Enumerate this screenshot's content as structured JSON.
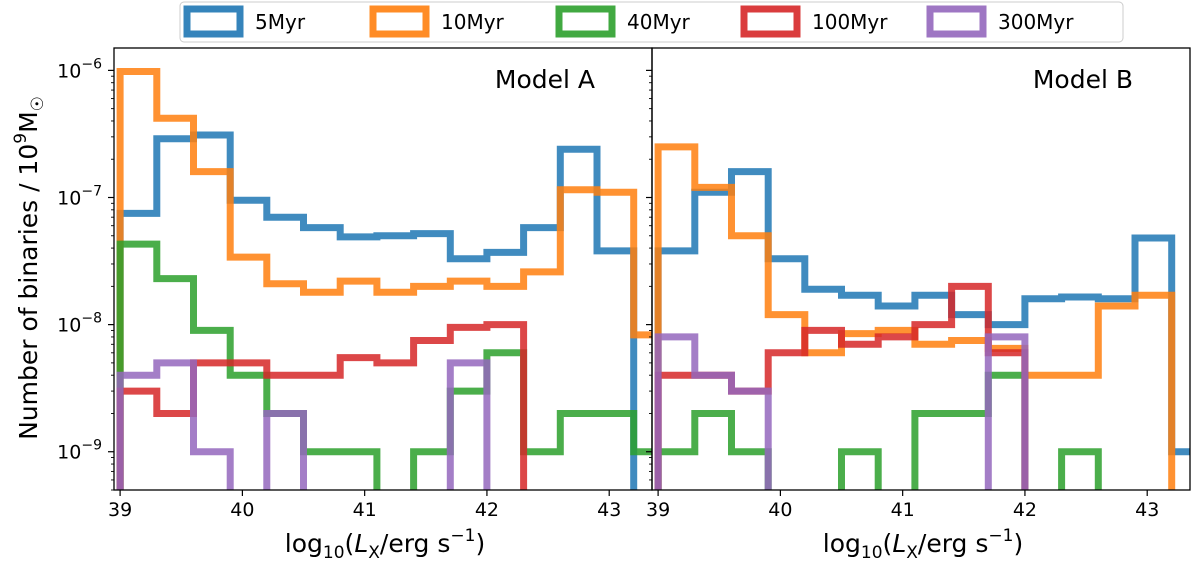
{
  "chart_data": {
    "type": "histogram-step",
    "ylabel": "Number of binaries / 10⁹M☉",
    "ylabel_parts": {
      "prefix": "Number of binaries / 10",
      "exp": "9",
      "unit": "M",
      "sub": "☉"
    },
    "yscale": "log",
    "ylim": [
      5e-10,
      1.5e-06
    ],
    "y_ticks": [
      {
        "value": 1e-09,
        "base": "10",
        "exp": "−9"
      },
      {
        "value": 1e-08,
        "base": "10",
        "exp": "−8"
      },
      {
        "value": 1e-07,
        "base": "10",
        "exp": "−7"
      },
      {
        "value": 1e-06,
        "base": "10",
        "exp": "−6"
      }
    ],
    "legend": {
      "placement": "top-center",
      "entries": [
        {
          "name": "5Myr",
          "color": "#1f77b4"
        },
        {
          "name": "10Myr",
          "color": "#ff7f0e"
        },
        {
          "name": "40Myr",
          "color": "#2ca02c"
        },
        {
          "name": "100Myr",
          "color": "#d62728"
        },
        {
          "name": "300Myr",
          "color": "#9467bd"
        }
      ]
    },
    "panels": [
      {
        "label": "Model A",
        "xlabel": {
          "pre": "log",
          "sub": "10",
          "mid": "(",
          "var": "L",
          "varsub": "X",
          "post": "/erg s",
          "exp": "−1",
          "end": ")"
        },
        "xlim": [
          38.95,
          43.35
        ],
        "x_ticks": [
          "39",
          "40",
          "41",
          "42",
          "43"
        ],
        "bin_width": 0.3,
        "series": [
          {
            "name": "5Myr",
            "color": "#1f77b4",
            "x_start": 39.0,
            "values": [
              7.5e-08,
              2.9e-07,
              3.1e-07,
              9.5e-08,
              7e-08,
              5.8e-08,
              4.9e-08,
              5e-08,
              5.2e-08,
              3.3e-08,
              3.7e-08,
              5.8e-08,
              2.4e-07,
              3.8e-08
            ]
          },
          {
            "name": "10Myr",
            "color": "#ff7f0e",
            "x_start": 39.0,
            "values": [
              9.8e-07,
              4.2e-07,
              1.6e-07,
              3.4e-08,
              2.1e-08,
              1.8e-08,
              2.2e-08,
              1.8e-08,
              2e-08,
              2.2e-08,
              2e-08,
              2.6e-08,
              1.15e-07,
              1.1e-07,
              8.3e-09
            ]
          },
          {
            "name": "40Myr",
            "color": "#2ca02c",
            "x_start": 39.0,
            "values": [
              4.3e-08,
              2.3e-08,
              9e-09,
              4e-09,
              2e-09,
              1e-09,
              1e-09,
              0,
              1e-09,
              3e-09,
              6e-09,
              1e-09,
              2e-09,
              2e-09,
              1e-09,
              0
            ]
          },
          {
            "name": "100Myr",
            "color": "#d62728",
            "x_start": 39.0,
            "values": [
              3e-09,
              2e-09,
              5e-09,
              5e-09,
              4e-09,
              4e-09,
              5.5e-09,
              5e-09,
              7.5e-09,
              9.5e-09,
              1e-08,
              0
            ]
          },
          {
            "name": "300Myr",
            "color": "#9467bd",
            "x_start": 39.0,
            "values": [
              4e-09,
              5e-09,
              1e-09,
              0,
              2e-09,
              0,
              0,
              0,
              0,
              5e-09,
              0
            ]
          }
        ]
      },
      {
        "label": "Model B",
        "xlabel": {
          "pre": "log",
          "sub": "10",
          "mid": "(",
          "var": "L",
          "varsub": "X",
          "post": "/erg s",
          "exp": "−1",
          "end": ")"
        },
        "xlim": [
          38.95,
          43.35
        ],
        "x_ticks": [
          "39",
          "40",
          "41",
          "42",
          "43"
        ],
        "bin_width": 0.3,
        "series": [
          {
            "name": "5Myr",
            "color": "#1f77b4",
            "x_start": 39.0,
            "values": [
              3.8e-08,
              1.1e-07,
              1.6e-07,
              3.3e-08,
              1.9e-08,
              1.7e-08,
              1.4e-08,
              1.7e-08,
              1.2e-08,
              1e-08,
              1.6e-08,
              1.65e-08,
              1.6e-08,
              4.8e-08,
              1e-09
            ]
          },
          {
            "name": "10Myr",
            "color": "#ff7f0e",
            "x_start": 39.0,
            "values": [
              2.5e-07,
              1.2e-07,
              5e-08,
              1.2e-08,
              6e-09,
              8.5e-09,
              9e-09,
              7e-09,
              7.5e-09,
              6.5e-09,
              4e-09,
              4e-09,
              1.4e-08,
              1.7e-08,
              0
            ]
          },
          {
            "name": "40Myr",
            "color": "#2ca02c",
            "x_start": 39.0,
            "values": [
              1e-09,
              2e-09,
              1e-09,
              0,
              0,
              1e-09,
              0,
              2e-09,
              2e-09,
              4e-09,
              0,
              1e-09,
              0
            ]
          },
          {
            "name": "100Myr",
            "color": "#d62728",
            "x_start": 39.0,
            "values": [
              4e-09,
              4e-09,
              3e-09,
              6e-09,
              9e-09,
              7e-09,
              8e-09,
              1e-08,
              2e-08,
              6e-09,
              0
            ]
          },
          {
            "name": "300Myr",
            "color": "#9467bd",
            "x_start": 39.0,
            "values": [
              8e-09,
              4e-09,
              3e-09,
              0,
              0,
              0,
              0,
              0,
              0,
              8e-09,
              0
            ]
          }
        ]
      }
    ]
  }
}
